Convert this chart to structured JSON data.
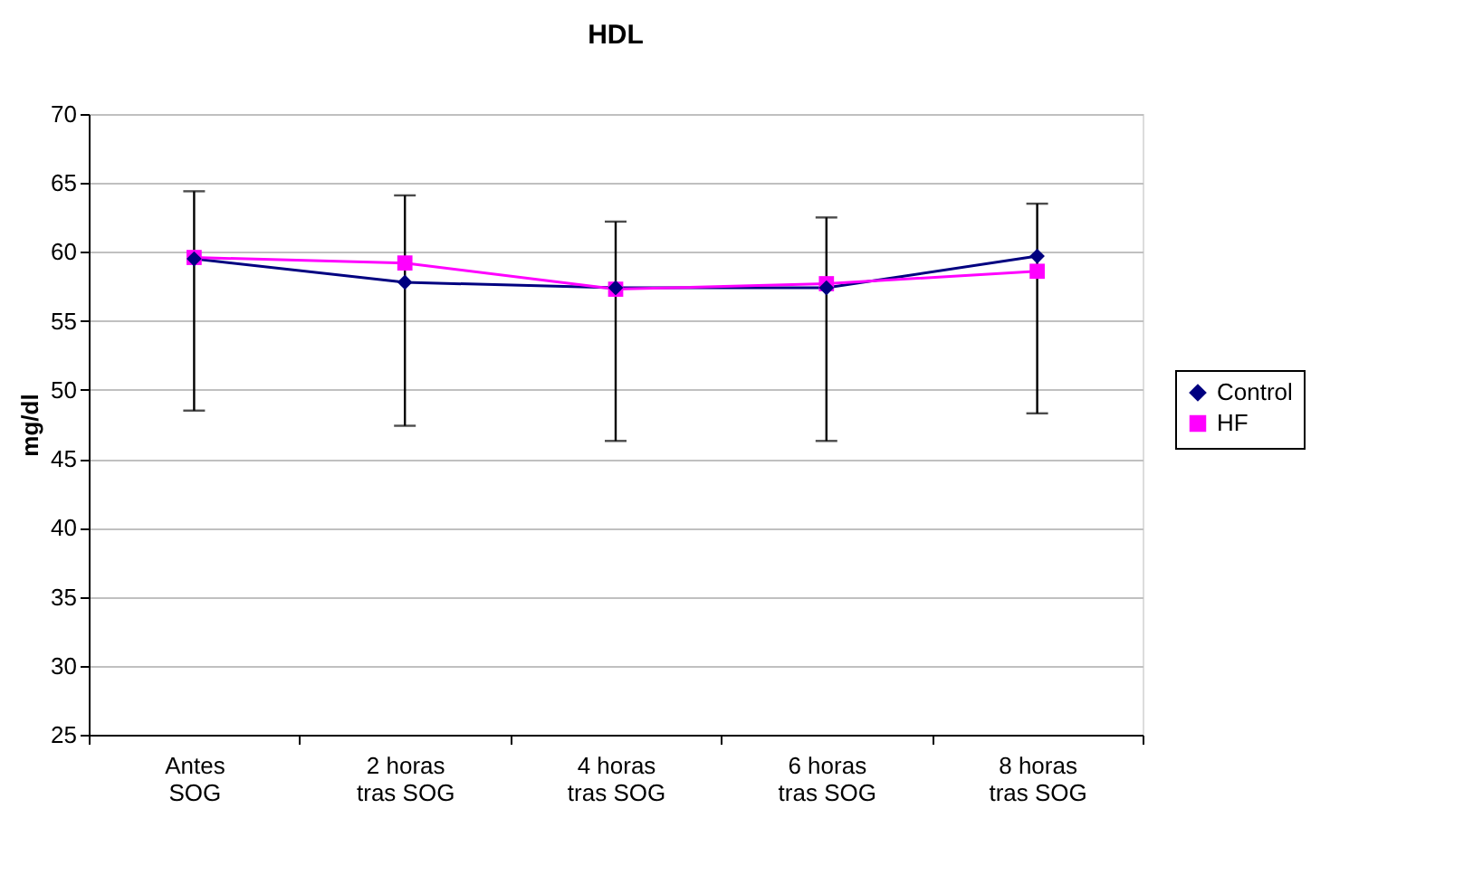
{
  "chart_data": {
    "type": "line",
    "title": "HDL",
    "ylabel": "mg/dl",
    "categories": [
      "Antes SOG",
      "2 horas tras SOG",
      "4 horas tras SOG",
      "6 horas tras SOG",
      "8 horas tras SOG"
    ],
    "series": [
      {
        "name": "Control",
        "color": "#000080",
        "marker": "diamond",
        "values": [
          59.5,
          57.8,
          57.4,
          57.4,
          59.7
        ],
        "errors": [
          [
            48.5,
            64.4
          ],
          [
            47.4,
            64.1
          ],
          [
            46.3,
            62.2
          ],
          [
            46.3,
            62.5
          ],
          [
            48.3,
            63.5
          ]
        ]
      },
      {
        "name": "HF",
        "color": "#ff00ff",
        "marker": "square",
        "values": [
          59.6,
          59.2,
          57.3,
          57.7,
          58.6
        ]
      }
    ],
    "ylim": [
      25,
      70
    ],
    "yticks": [
      25,
      30,
      35,
      40,
      45,
      50,
      55,
      60,
      65,
      70
    ],
    "grid": "y",
    "legend": "right",
    "line_style": "solid"
  }
}
